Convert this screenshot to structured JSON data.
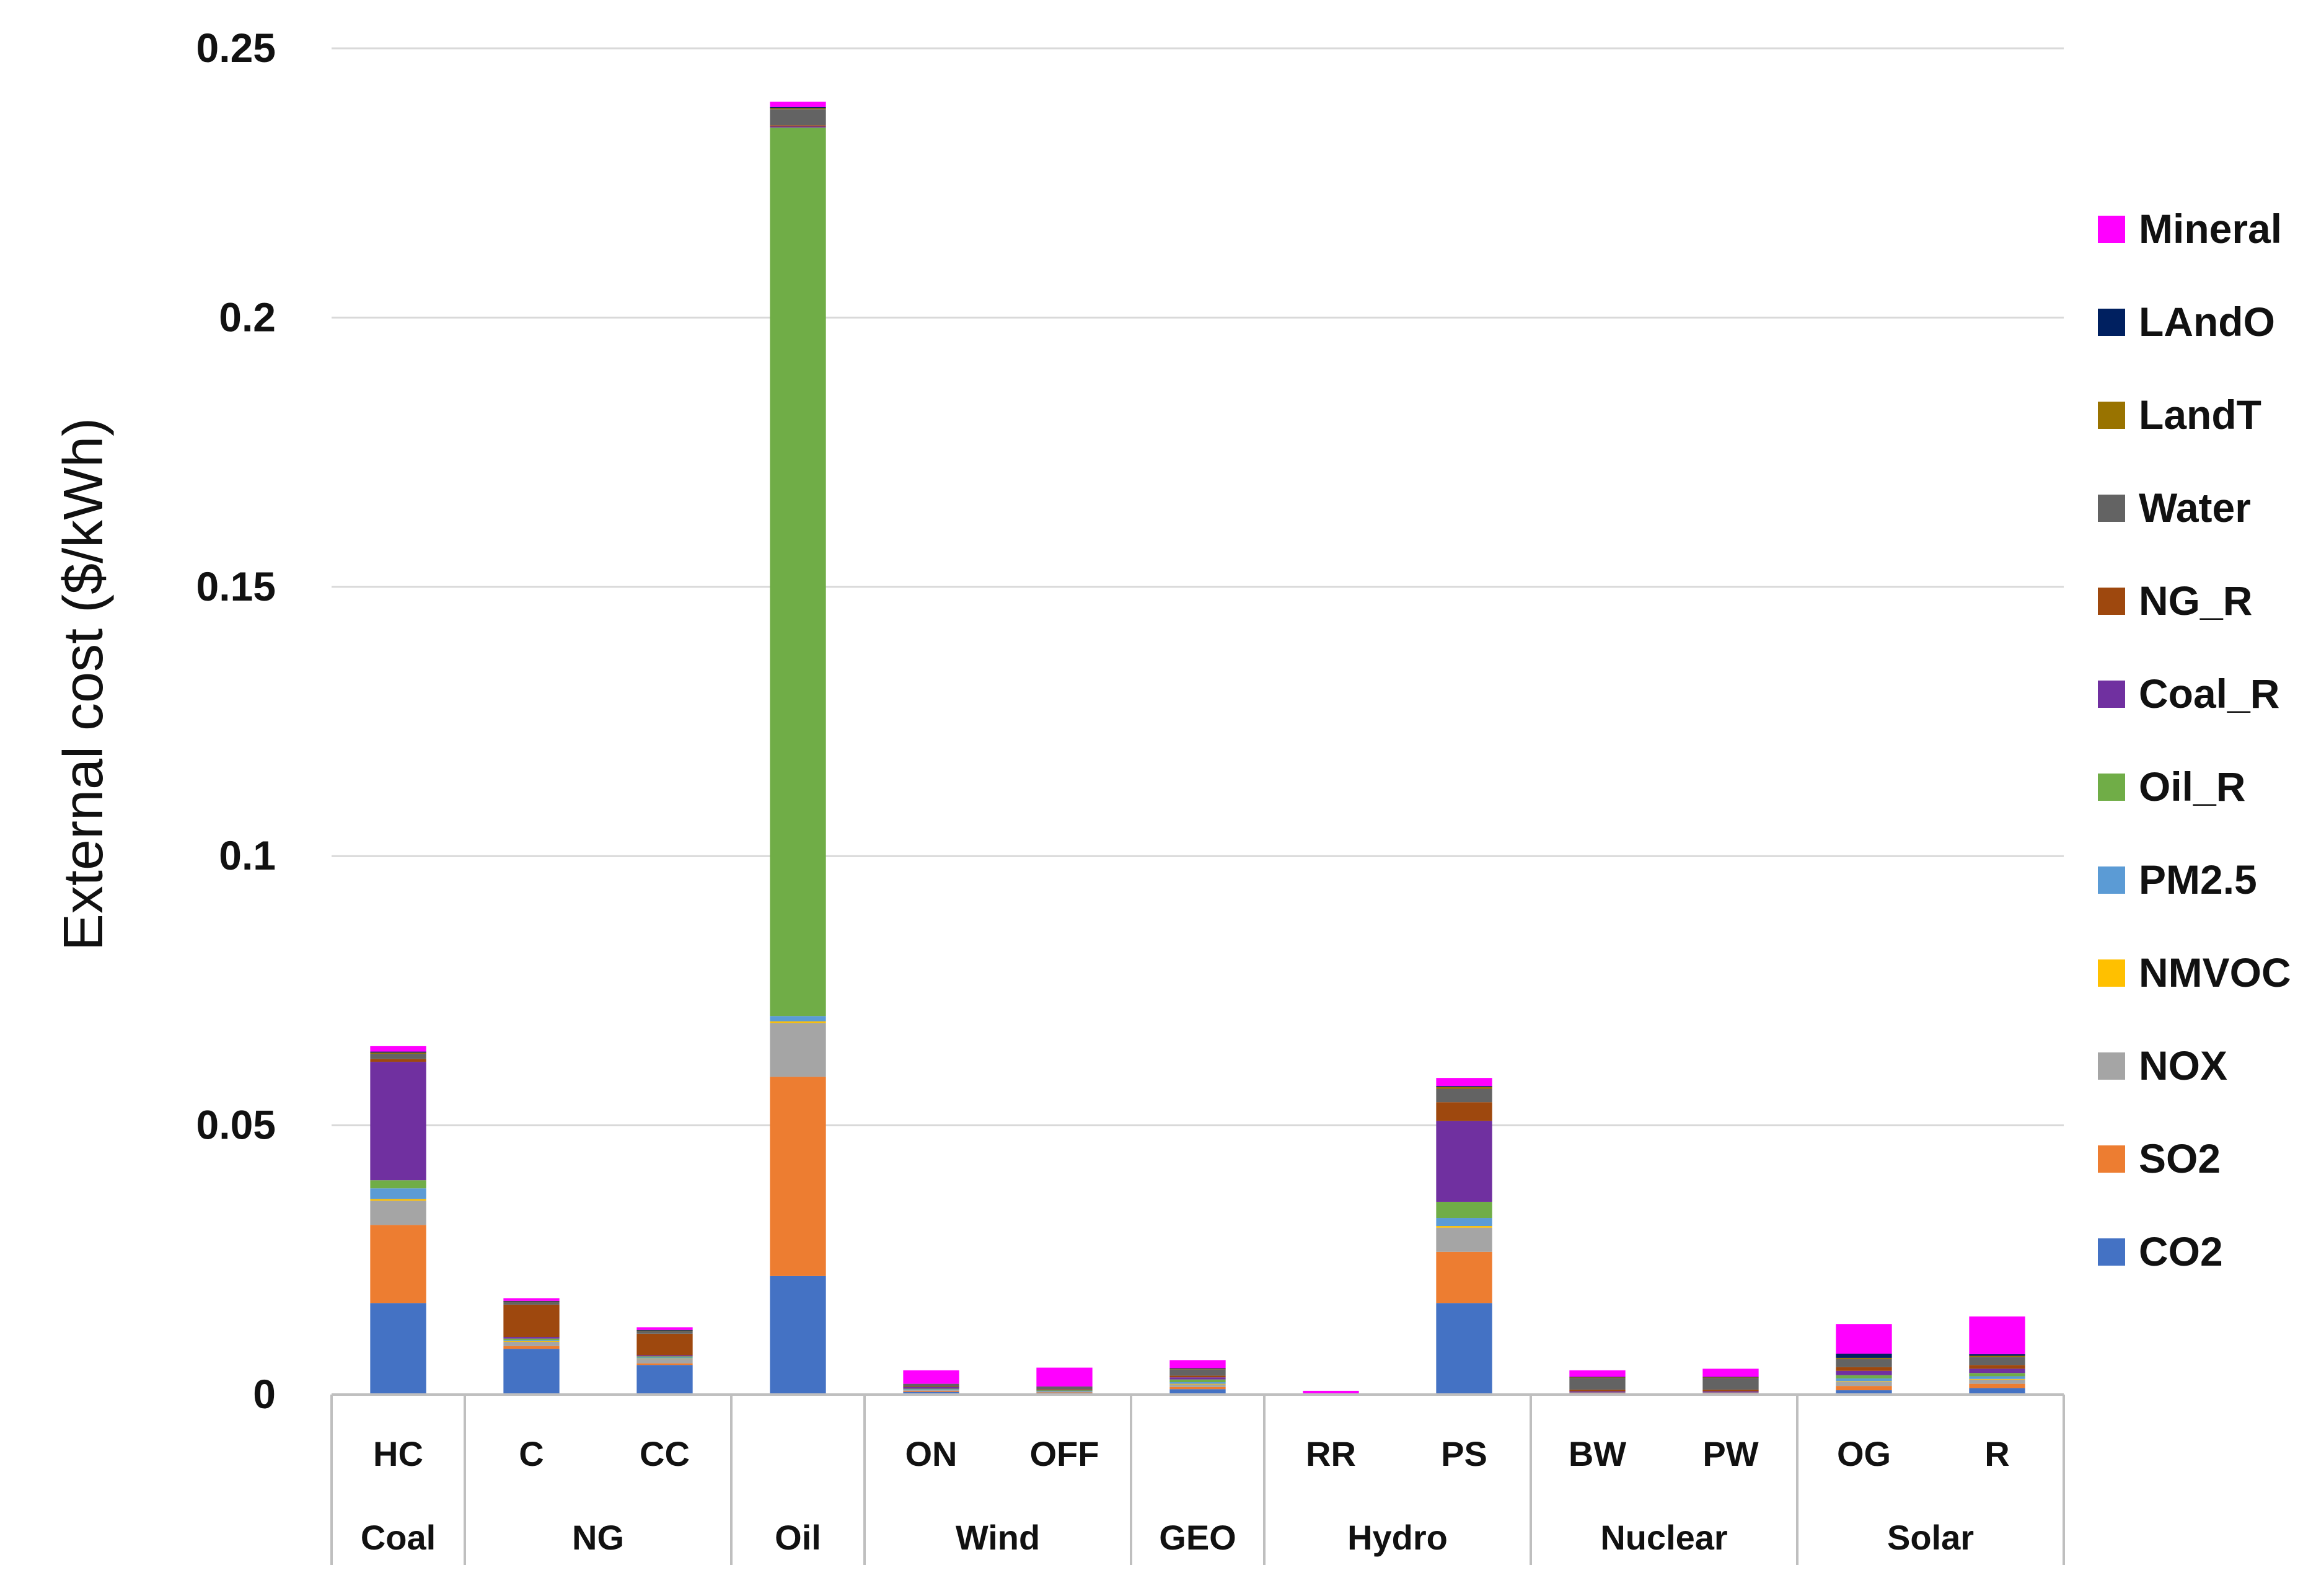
{
  "chart_data": {
    "type": "bar",
    "stacked": true,
    "title": "",
    "xlabel": "",
    "ylabel": "External cost ($/kWh)",
    "ylim": [
      0,
      0.25
    ],
    "yticks": [
      0,
      0.05,
      0.1,
      0.15,
      0.2,
      0.25
    ],
    "ytick_labels": [
      "0",
      "0.05",
      "0.1",
      "0.15",
      "0.2",
      "0.25"
    ],
    "grid": true,
    "legend_position": "right",
    "categories": [
      "HC",
      "C",
      "CC",
      "",
      "ON",
      "OFF",
      "",
      "RR",
      "PS",
      "BW",
      "PW",
      "OG",
      "R"
    ],
    "groups": [
      {
        "label": "Coal",
        "start": 0,
        "end": 0
      },
      {
        "label": "NG",
        "start": 1,
        "end": 2
      },
      {
        "label": "Oil",
        "start": 3,
        "end": 3
      },
      {
        "label": "Wind",
        "start": 4,
        "end": 5
      },
      {
        "label": "GEO",
        "start": 6,
        "end": 6
      },
      {
        "label": "Hydro",
        "start": 7,
        "end": 8
      },
      {
        "label": "Nuclear",
        "start": 9,
        "end": 10
      },
      {
        "label": "Solar",
        "start": 11,
        "end": 12
      }
    ],
    "series": [
      {
        "name": "CO2",
        "color": "#4472C4",
        "values": [
          0.017,
          0.0085,
          0.0055,
          0.022,
          0.0005,
          0.0003,
          0.001,
          0.0001,
          0.017,
          0.0002,
          0.0002,
          0.0008,
          0.0012
        ]
      },
      {
        "name": "SO2",
        "color": "#ED7D31",
        "values": [
          0.0145,
          0.0005,
          0.0003,
          0.037,
          0.0002,
          0.0001,
          0.0004,
          0.0,
          0.0095,
          0.0001,
          0.0001,
          0.0008,
          0.0008
        ]
      },
      {
        "name": "NOX",
        "color": "#A5A5A5",
        "values": [
          0.0045,
          0.0008,
          0.0008,
          0.01,
          0.0002,
          0.0002,
          0.0005,
          0.0,
          0.0045,
          0.0001,
          0.0001,
          0.0008,
          0.0008
        ]
      },
      {
        "name": "NMVOC",
        "color": "#FFC000",
        "values": [
          0.0003,
          0.0001,
          0.0001,
          0.0003,
          0.0,
          0.0,
          0.0001,
          0.0,
          0.0003,
          0.0,
          0.0,
          0.0001,
          0.0001
        ]
      },
      {
        "name": "PM2.5",
        "color": "#5B9BD5",
        "values": [
          0.002,
          0.0002,
          0.0002,
          0.001,
          0.0001,
          0.0001,
          0.0003,
          0.0,
          0.0015,
          0.0,
          0.0,
          0.0005,
          0.0005
        ]
      },
      {
        "name": "Oil_R",
        "color": "#70AD47",
        "values": [
          0.0015,
          0.0003,
          0.0002,
          0.165,
          0.0001,
          0.0001,
          0.0005,
          0.0,
          0.003,
          0.0,
          0.0,
          0.0006,
          0.0006
        ]
      },
      {
        "name": "Coal_R",
        "color": "#7030A0",
        "values": [
          0.022,
          0.0003,
          0.0002,
          0.0002,
          0.0003,
          0.0001,
          0.0004,
          0.0,
          0.015,
          0.0002,
          0.0002,
          0.0008,
          0.0008
        ]
      },
      {
        "name": "NG_R",
        "color": "#9E480E",
        "values": [
          0.0005,
          0.006,
          0.004,
          0.0002,
          0.0001,
          0.0001,
          0.0003,
          0.0,
          0.0035,
          0.0003,
          0.0003,
          0.0007,
          0.0007
        ]
      },
      {
        "name": "Water",
        "color": "#636363",
        "values": [
          0.001,
          0.0005,
          0.0005,
          0.003,
          0.0005,
          0.0005,
          0.0012,
          0.0001,
          0.0025,
          0.0022,
          0.0022,
          0.0015,
          0.0015
        ]
      },
      {
        "name": "LandT",
        "color": "#997300",
        "values": [
          0.0002,
          0.0001,
          0.0001,
          0.0002,
          0.0,
          0.0,
          0.0001,
          0.0,
          0.0003,
          0.0001,
          0.0001,
          0.0002,
          0.0002
        ]
      },
      {
        "name": "LAndO",
        "color": "#002060",
        "values": [
          0.0002,
          0.0001,
          0.0001,
          0.0002,
          0.0,
          0.0,
          0.0001,
          0.0,
          0.0002,
          0.0001,
          0.0001,
          0.0008,
          0.0003
        ]
      },
      {
        "name": "Mineral",
        "color": "#FF00FF",
        "values": [
          0.001,
          0.0005,
          0.0005,
          0.001,
          0.0025,
          0.0035,
          0.0015,
          0.0005,
          0.0015,
          0.0012,
          0.0015,
          0.0055,
          0.007
        ]
      }
    ],
    "legend_order": [
      "Mineral",
      "LAndO",
      "LandT",
      "Water",
      "NG_R",
      "Coal_R",
      "Oil_R",
      "PM2.5",
      "NMVOC",
      "NOX",
      "SO2",
      "CO2"
    ]
  }
}
